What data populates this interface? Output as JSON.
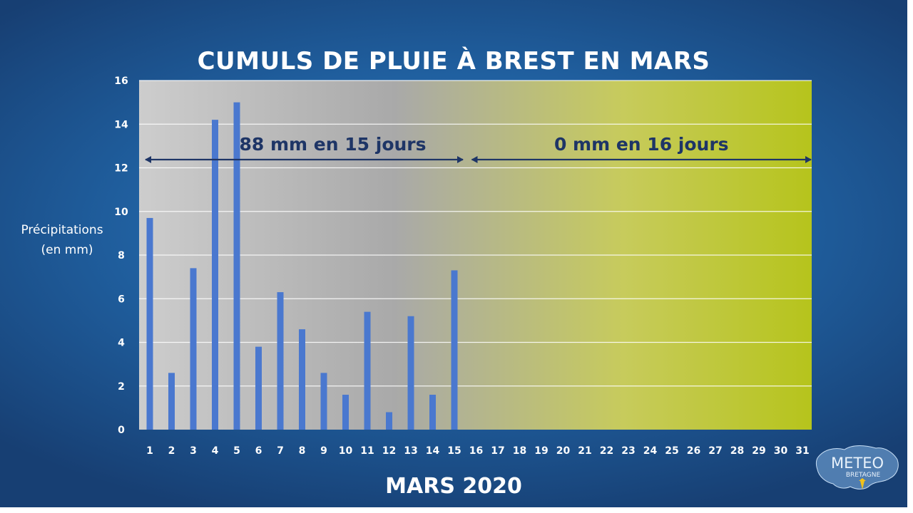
{
  "chart_data": {
    "type": "bar",
    "title": "CUMULS DE PLUIE À BREST EN MARS",
    "xlabel": "MARS 2020",
    "ylabel": [
      "Précipitations",
      "(en mm)"
    ],
    "ylim": [
      0,
      16
    ],
    "yticks": [
      0,
      2,
      4,
      6,
      8,
      10,
      12,
      14,
      16
    ],
    "grid": true,
    "categories": [
      "1",
      "2",
      "3",
      "4",
      "5",
      "6",
      "7",
      "8",
      "9",
      "10",
      "11",
      "12",
      "13",
      "14",
      "15",
      "16",
      "17",
      "18",
      "19",
      "20",
      "21",
      "22",
      "23",
      "24",
      "25",
      "26",
      "27",
      "28",
      "29",
      "30",
      "31"
    ],
    "values": [
      9.7,
      2.6,
      7.4,
      14.2,
      15.0,
      3.8,
      6.3,
      4.6,
      2.6,
      1.6,
      5.4,
      0.8,
      5.2,
      1.6,
      7.3,
      0,
      0,
      0,
      0,
      0,
      0,
      0,
      0,
      0,
      0,
      0,
      0,
      0,
      0,
      0,
      0
    ],
    "annotations": [
      {
        "text": "88 mm en 15 jours",
        "from_day": 1,
        "to_day": 15
      },
      {
        "text": "0 mm en 16 jours",
        "from_day": 16,
        "to_day": 31
      }
    ],
    "colors": {
      "bar": "#4a78cf",
      "plot_gradient_start": "#cfcfcf",
      "plot_gradient_mid": "#a8a8a8",
      "plot_gradient_end": "#b7c51e",
      "annotation": "#1e3566"
    }
  },
  "logo": {
    "name": "meteo-bretagne-logo",
    "word": "METEO",
    "sub": "BRETAGNE"
  }
}
